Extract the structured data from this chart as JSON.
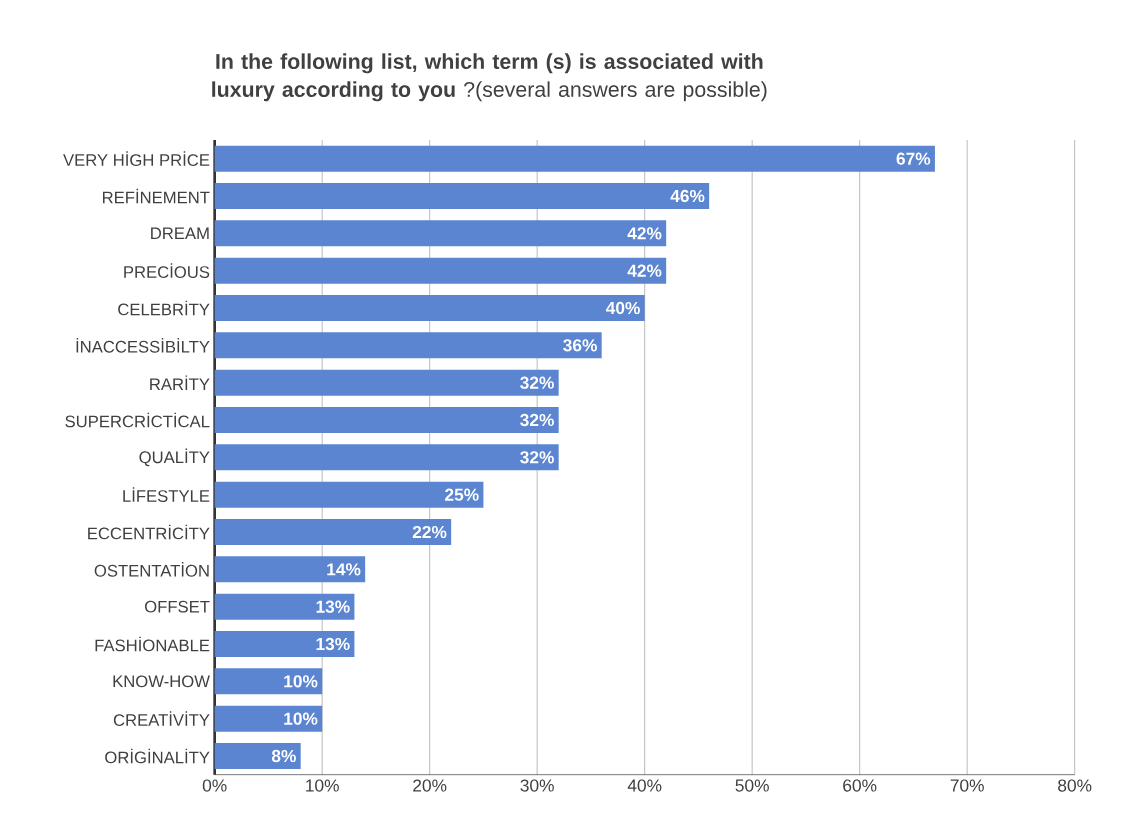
{
  "chart_data": {
    "type": "bar",
    "orientation": "horizontal",
    "title": "**In the following list, which term (s) is associated with luxury according to you** ?(several answers are possible)",
    "categories": [
      "VERY HİGH PRİCE",
      "REFİNEMENT",
      "DREAM",
      "PRECİOUS",
      "CELEBRİTY",
      "İNACCESSİBİLTY",
      "RARİTY",
      "SUPERCRİCTİCAL",
      "QUALİTY",
      "LİFESTYLE",
      "ECCENTRİCİTY",
      "OSTENTATİON",
      "OFFSET",
      "FASHİONABLE",
      "KNOW-HOW",
      "CREATİVİTY",
      "ORİGİNALİTY"
    ],
    "values": [
      67,
      46,
      42,
      42,
      40,
      36,
      32,
      32,
      32,
      25,
      22,
      14,
      13,
      13,
      10,
      10,
      8
    ],
    "value_labels": [
      "67%",
      "46%",
      "42%",
      "42%",
      "40%",
      "36%",
      "32%",
      "32%",
      "32%",
      "25%",
      "22%",
      "14%",
      "13%",
      "13%",
      "10%",
      "10%",
      "8%"
    ],
    "color": "#5b85d0",
    "xlim": [
      0,
      80
    ],
    "xticks": [
      {
        "value": 0,
        "label": "0%"
      },
      {
        "value": 10,
        "label": "10%"
      },
      {
        "value": 20,
        "label": "20%"
      },
      {
        "value": 30,
        "label": "30%"
      },
      {
        "value": 40,
        "label": "40%"
      },
      {
        "value": 50,
        "label": "50%"
      },
      {
        "value": 60,
        "label": "60%"
      },
      {
        "value": 70,
        "label": "70%"
      },
      {
        "value": 80,
        "label": "80%"
      }
    ],
    "grid": "x"
  }
}
